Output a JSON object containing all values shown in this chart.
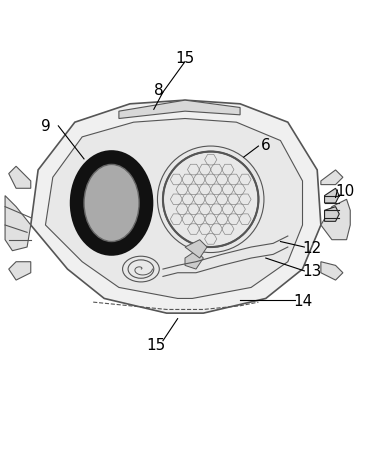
{
  "fig_width": 3.7,
  "fig_height": 4.52,
  "dpi": 100,
  "bg_color": "#ffffff",
  "line_color": "#555555",
  "dark_color": "#222222"
}
